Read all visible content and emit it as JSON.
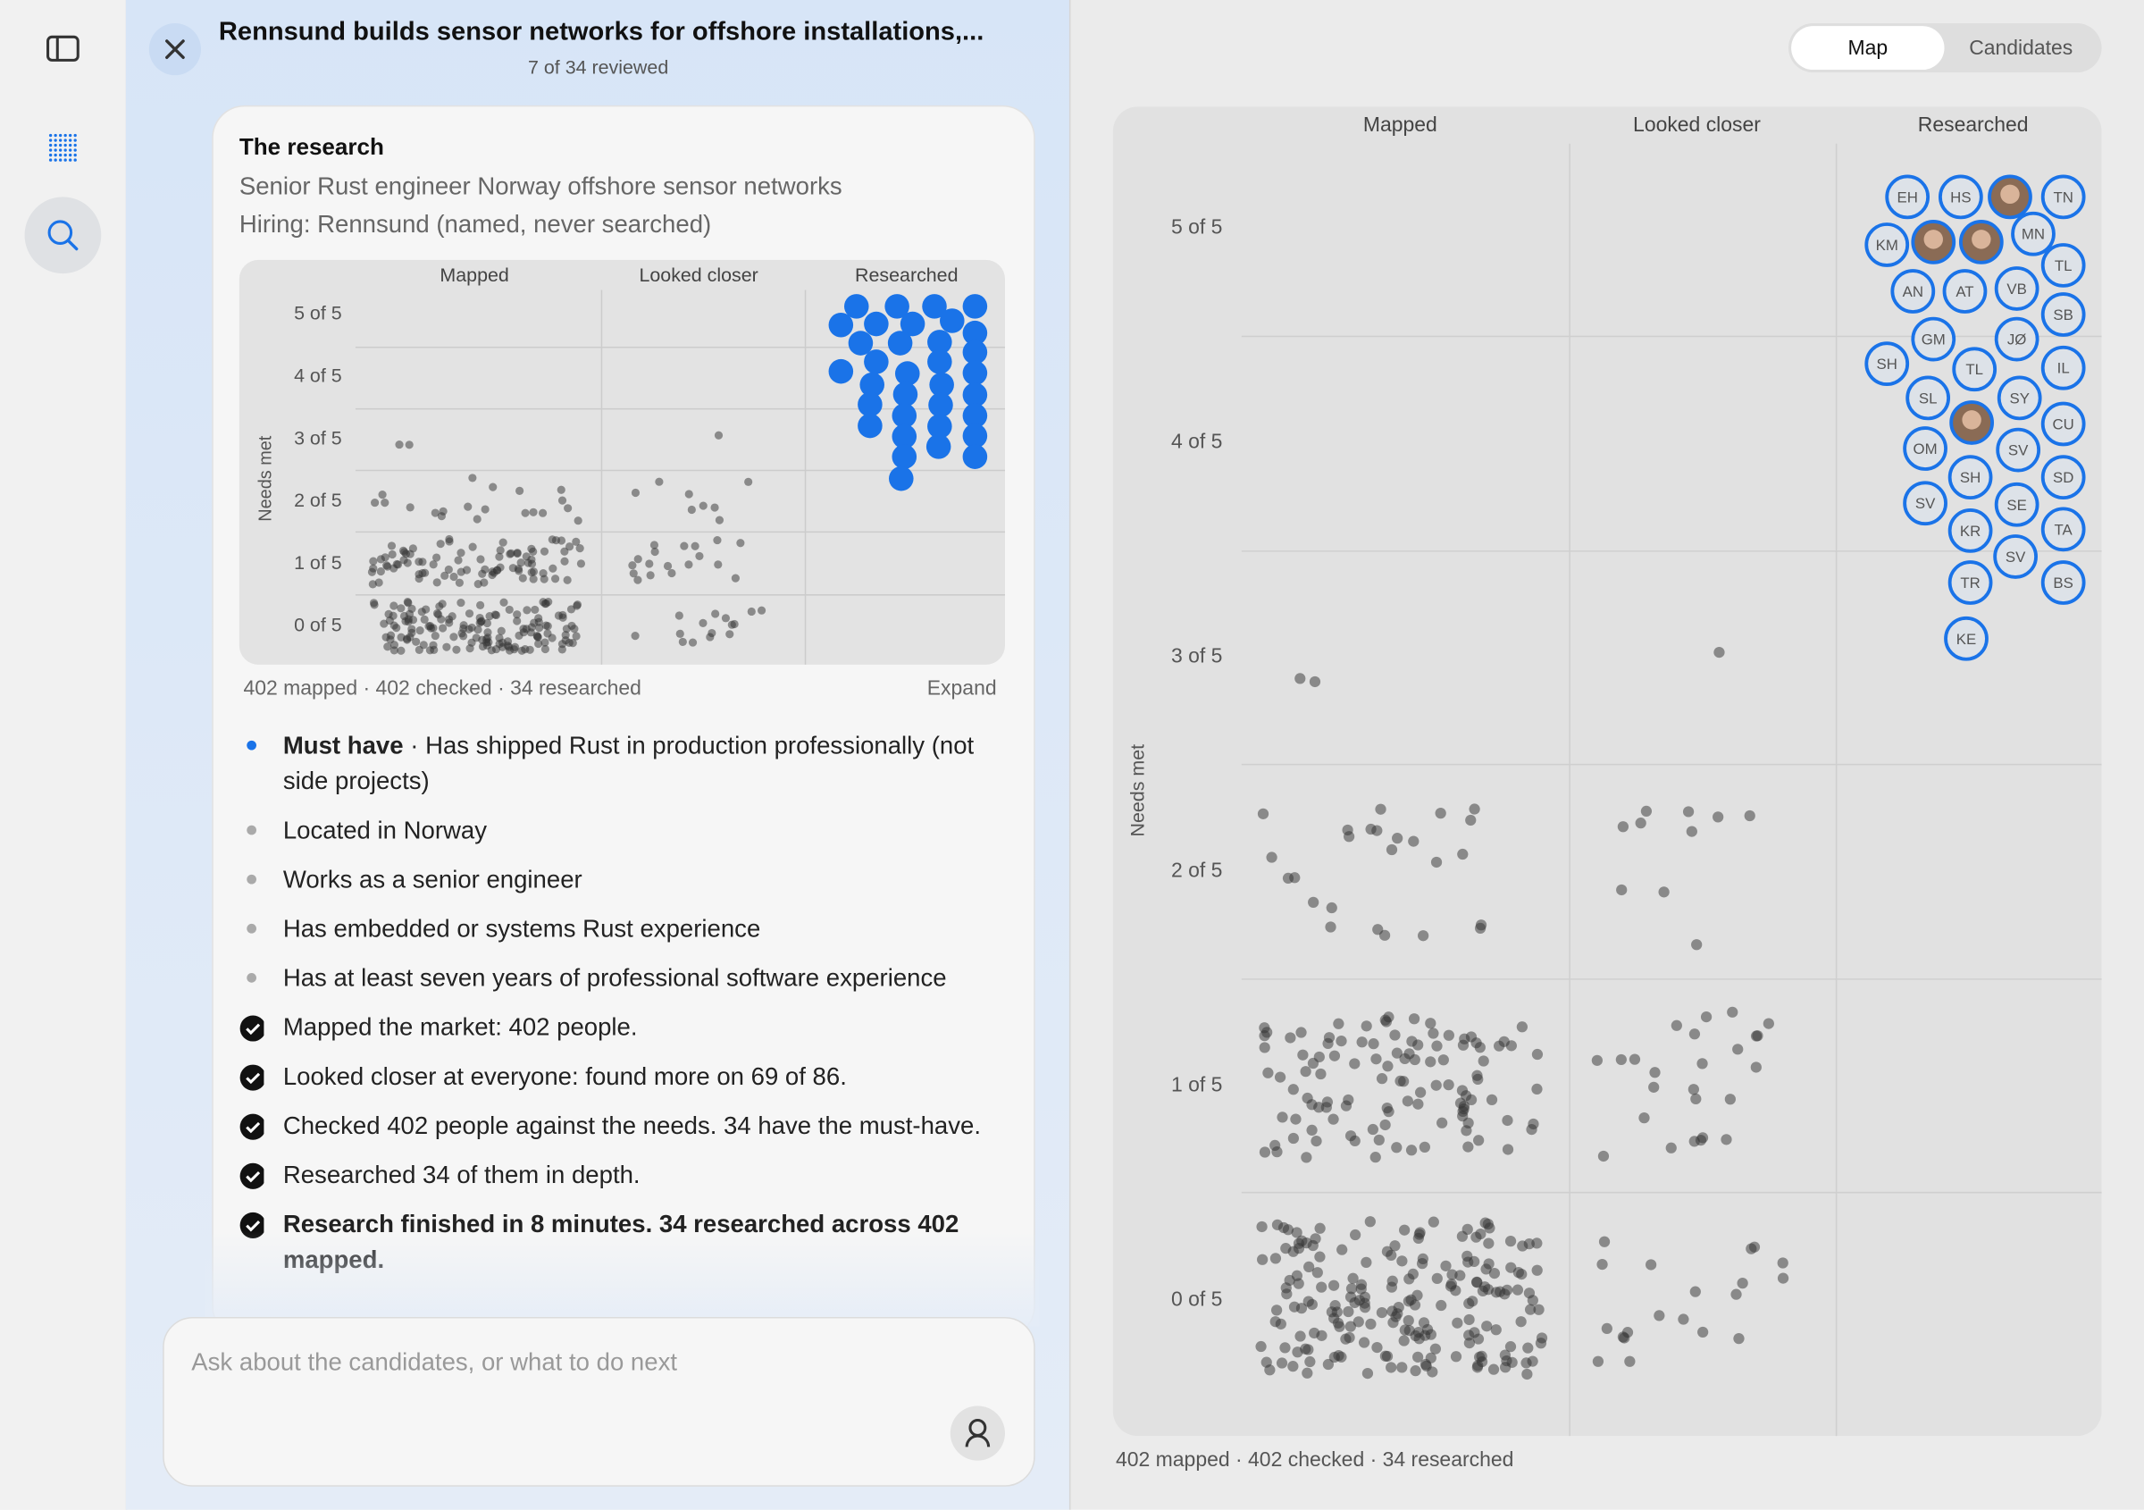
{
  "header": {
    "title": "Rennsund builds sensor networks for offshore installations,...",
    "subtitle": "7 of 34 reviewed"
  },
  "research": {
    "heading": "The research",
    "query": "Senior Rust engineer Norway offshore sensor networks",
    "hiring": "Hiring: Rennsund (named, never searched)",
    "mini_map": {
      "columns": [
        "Mapped",
        "Looked closer",
        "Researched"
      ],
      "rows": [
        "5 of 5",
        "4 of 5",
        "3 of 5",
        "2 of 5",
        "1 of 5",
        "0 of 5"
      ],
      "axis_label": "Needs met"
    },
    "stats": "402 mapped · 402 checked · 34 researched",
    "expand": "Expand",
    "needs": [
      {
        "label": "Must have",
        "text": "· Has shipped Rust in production professionally (not side projects)"
      },
      {
        "text": "Located in Norway"
      },
      {
        "text": "Works as a senior engineer"
      },
      {
        "text": "Has embedded or systems Rust experience"
      },
      {
        "text": "Has at least seven years of professional software experience"
      }
    ],
    "steps": [
      "Mapped the market: 402 people.",
      "Looked closer at everyone: found more on 69 of 86.",
      "Checked 402 people against the needs. 34 have the must-have.",
      "Researched 34 of them in depth.",
      "Research finished in 8 minutes. 34 researched across 402 mapped."
    ]
  },
  "composer": {
    "placeholder": "Ask about the candidates, or what to do next"
  },
  "tabs": [
    "Map",
    "Candidates"
  ],
  "map": {
    "columns": [
      "Mapped",
      "Looked closer",
      "Researched"
    ],
    "rows": [
      "5 of 5",
      "4 of 5",
      "3 of 5",
      "2 of 5",
      "1 of 5",
      "0 of 5"
    ],
    "axis_label": "Needs met",
    "researched": [
      "EH",
      "HS",
      null,
      "TN",
      "KM",
      null,
      null,
      "MN",
      "TL",
      "AN",
      "AT",
      "VB",
      "SB",
      "GM",
      "JØ",
      "SH",
      "TL",
      "IL",
      "SL",
      "SY",
      null,
      "CU",
      "OM",
      "SV",
      "SD",
      "SH",
      "SE",
      "SV",
      "KR",
      "TA",
      "SV",
      "TR",
      "BS",
      "KE"
    ],
    "stats": "402 mapped · 402 checked · 34 researched"
  }
}
